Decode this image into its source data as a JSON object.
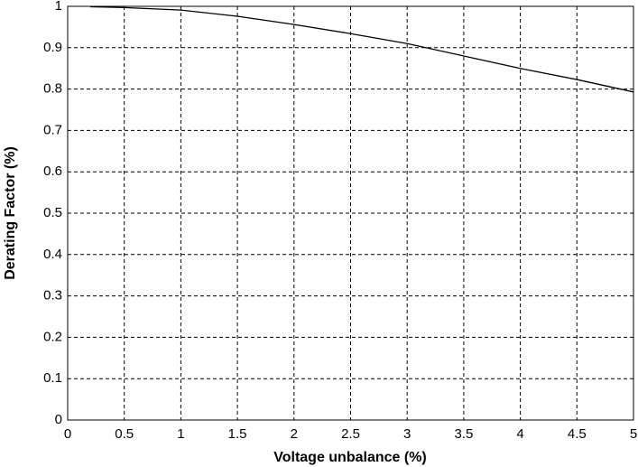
{
  "chart_data": {
    "type": "line",
    "xlabel": "Voltage unbalance (%)",
    "ylabel": "Derating Factor (%)",
    "x": [
      0.2,
      0.5,
      1,
      1.5,
      2,
      2.5,
      3,
      3.5,
      4,
      4.5,
      5
    ],
    "series": [
      {
        "name": "Derating factor",
        "color": "#000000",
        "values": [
          0.999,
          0.997,
          0.991,
          0.976,
          0.956,
          0.934,
          0.91,
          0.88,
          0.85,
          0.823,
          0.793
        ]
      }
    ],
    "xlim": [
      0,
      5
    ],
    "xticks": [
      0,
      0.5,
      1,
      1.5,
      2,
      2.5,
      3,
      3.5,
      4,
      4.5,
      5
    ],
    "ylim": [
      0,
      1
    ],
    "yticks": [
      0,
      0.1,
      0.2,
      0.3,
      0.4,
      0.5,
      0.6,
      0.7,
      0.8,
      0.9,
      1
    ],
    "grid": true
  }
}
